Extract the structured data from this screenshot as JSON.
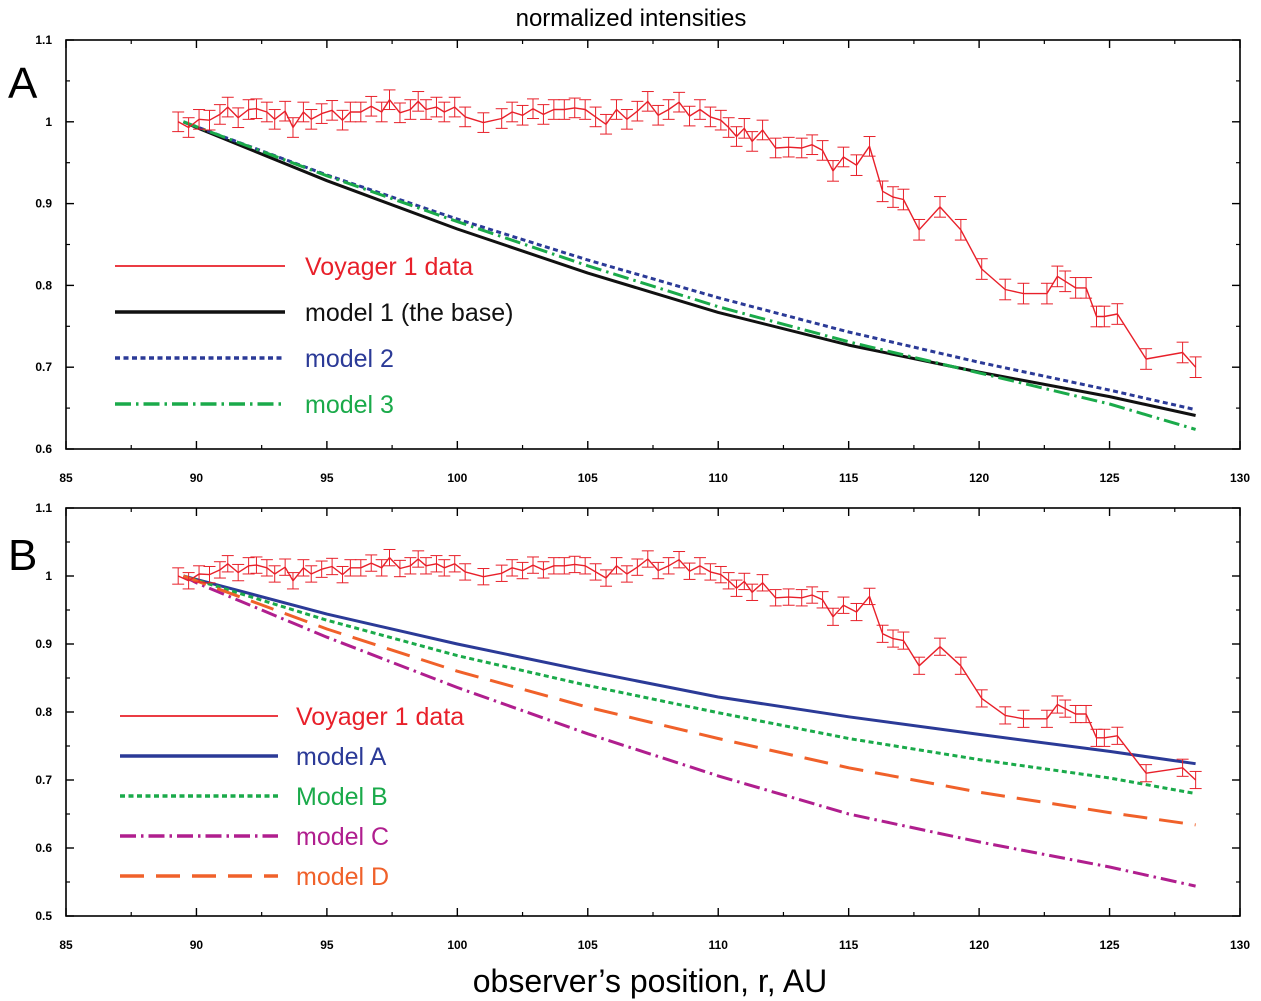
{
  "figure": {
    "title": "normalized intensities",
    "xlabel": "observer’s position, r, AU"
  },
  "colors": {
    "voyager": "#e8202a",
    "model_1": "#111111",
    "model_2": "#2b3a97",
    "model_3": "#1aaa4a",
    "model_A": "#2b3a97",
    "model_B": "#1aaa4a",
    "model_C": "#b01e8e",
    "model_D": "#f0612a"
  },
  "chart_data": [
    {
      "type": "line",
      "panel_label": "A",
      "xlim": [
        85,
        130
      ],
      "ylim": [
        0.6,
        1.1
      ],
      "x_ticks": [
        85,
        90,
        95,
        100,
        105,
        110,
        115,
        120,
        125,
        130
      ],
      "y_ticks": [
        "0.6",
        "0.7",
        "0.8",
        "0.9",
        "1",
        "1.1"
      ],
      "grid": false,
      "legend_position": "left",
      "series": [
        {
          "name": "Voyager 1 data",
          "color": "#e8202a",
          "style": "solid-errorbars",
          "x": [
            89.3,
            89.7,
            90.1,
            90.5,
            90.9,
            91.2,
            91.6,
            92.0,
            92.3,
            92.7,
            93.0,
            93.4,
            93.7,
            94.1,
            94.4,
            94.8,
            95.2,
            95.6,
            95.9,
            96.3,
            96.7,
            97.1,
            97.4,
            97.8,
            98.2,
            98.5,
            98.8,
            99.2,
            99.5,
            99.9,
            100.3,
            101.0,
            101.7,
            102.1,
            102.5,
            102.9,
            103.3,
            103.7,
            104.1,
            104.5,
            104.9,
            105.3,
            105.7,
            106.1,
            106.5,
            106.9,
            107.3,
            107.7,
            108.1,
            108.5,
            108.9,
            109.3,
            109.7,
            110.1,
            110.4,
            110.7,
            111.0,
            111.3,
            111.7,
            112.2,
            112.7,
            113.2,
            113.6,
            114.0,
            114.4,
            114.8,
            115.3,
            115.8,
            116.3,
            116.7,
            117.1,
            117.7,
            118.5,
            119.3,
            120.1,
            121.0,
            121.7,
            122.6,
            123.0,
            123.3,
            123.7,
            124.1,
            124.5,
            124.8,
            125.3,
            126.4,
            127.8,
            128.3
          ],
          "y": [
            1.0,
            0.993,
            1.003,
            1.002,
            1.009,
            1.018,
            1.005,
            1.015,
            1.016,
            1.012,
            1.003,
            1.013,
            0.993,
            1.012,
            1.003,
            1.01,
            1.014,
            1.002,
            1.012,
            1.012,
            1.019,
            1.012,
            1.027,
            1.011,
            1.015,
            1.025,
            1.015,
            1.018,
            1.012,
            1.018,
            1.006,
            0.999,
            1.004,
            1.012,
            1.008,
            1.016,
            1.009,
            1.015,
            1.015,
            1.017,
            1.015,
            1.006,
            0.997,
            1.015,
            1.003,
            1.013,
            1.025,
            1.008,
            1.015,
            1.024,
            1.007,
            1.015,
            1.006,
            1.002,
            0.993,
            0.982,
            0.992,
            0.976,
            0.99,
            0.968,
            0.969,
            0.968,
            0.972,
            0.965,
            0.94,
            0.957,
            0.947,
            0.97,
            0.915,
            0.908,
            0.905,
            0.868,
            0.896,
            0.868,
            0.82,
            0.795,
            0.79,
            0.79,
            0.811,
            0.805,
            0.797,
            0.797,
            0.762,
            0.762,
            0.765,
            0.71,
            0.718,
            0.7
          ]
        },
        {
          "name": "model 1 (the base)",
          "color": "#111111",
          "style": "solid",
          "x": [
            89.5,
            90,
            95,
            100,
            105,
            110,
            115,
            120,
            125,
            128.3
          ],
          "y": [
            1.0,
            0.993,
            0.928,
            0.869,
            0.815,
            0.767,
            0.727,
            0.694,
            0.664,
            0.641
          ]
        },
        {
          "name": "model 2",
          "color": "#2b3a97",
          "style": "dotted",
          "x": [
            89.5,
            90,
            95,
            100,
            105,
            110,
            115,
            120,
            125,
            128.3
          ],
          "y": [
            1.0,
            0.994,
            0.935,
            0.881,
            0.831,
            0.785,
            0.743,
            0.706,
            0.672,
            0.648
          ]
        },
        {
          "name": "model 3",
          "color": "#1aaa4a",
          "style": "dash-dot",
          "x": [
            89.5,
            90,
            95,
            100,
            105,
            110,
            115,
            120,
            125,
            128.3
          ],
          "y": [
            1.0,
            0.994,
            0.934,
            0.878,
            0.824,
            0.774,
            0.731,
            0.693,
            0.655,
            0.624
          ]
        }
      ]
    },
    {
      "type": "line",
      "panel_label": "B",
      "xlim": [
        85,
        130
      ],
      "ylim": [
        0.5,
        1.1
      ],
      "x_ticks": [
        85,
        90,
        95,
        100,
        105,
        110,
        115,
        120,
        125,
        130
      ],
      "y_ticks": [
        "0.5",
        "0.6",
        "0.7",
        "0.8",
        "0.9",
        "1",
        "1.1"
      ],
      "grid": false,
      "legend_position": "left",
      "series": [
        {
          "name": "Voyager 1 data",
          "color": "#e8202a",
          "style": "solid-errorbars",
          "x": [
            89.3,
            89.7,
            90.1,
            90.5,
            90.9,
            91.2,
            91.6,
            92.0,
            92.3,
            92.7,
            93.0,
            93.4,
            93.7,
            94.1,
            94.4,
            94.8,
            95.2,
            95.6,
            95.9,
            96.3,
            96.7,
            97.1,
            97.4,
            97.8,
            98.2,
            98.5,
            98.8,
            99.2,
            99.5,
            99.9,
            100.3,
            101.0,
            101.7,
            102.1,
            102.5,
            102.9,
            103.3,
            103.7,
            104.1,
            104.5,
            104.9,
            105.3,
            105.7,
            106.1,
            106.5,
            106.9,
            107.3,
            107.7,
            108.1,
            108.5,
            108.9,
            109.3,
            109.7,
            110.1,
            110.4,
            110.7,
            111.0,
            111.3,
            111.7,
            112.2,
            112.7,
            113.2,
            113.6,
            114.0,
            114.4,
            114.8,
            115.3,
            115.8,
            116.3,
            116.7,
            117.1,
            117.7,
            118.5,
            119.3,
            120.1,
            121.0,
            121.7,
            122.6,
            123.0,
            123.3,
            123.7,
            124.1,
            124.5,
            124.8,
            125.3,
            126.4,
            127.8,
            128.3
          ],
          "y": [
            1.0,
            0.993,
            1.003,
            1.002,
            1.009,
            1.018,
            1.005,
            1.015,
            1.016,
            1.012,
            1.003,
            1.013,
            0.993,
            1.012,
            1.003,
            1.01,
            1.014,
            1.002,
            1.012,
            1.012,
            1.019,
            1.012,
            1.027,
            1.011,
            1.015,
            1.025,
            1.015,
            1.018,
            1.012,
            1.018,
            1.006,
            0.999,
            1.004,
            1.012,
            1.008,
            1.016,
            1.009,
            1.015,
            1.015,
            1.017,
            1.015,
            1.006,
            0.997,
            1.015,
            1.003,
            1.013,
            1.025,
            1.008,
            1.015,
            1.024,
            1.007,
            1.015,
            1.006,
            1.002,
            0.993,
            0.982,
            0.992,
            0.976,
            0.99,
            0.968,
            0.969,
            0.968,
            0.972,
            0.965,
            0.94,
            0.957,
            0.947,
            0.97,
            0.915,
            0.908,
            0.905,
            0.868,
            0.896,
            0.868,
            0.82,
            0.795,
            0.79,
            0.79,
            0.811,
            0.805,
            0.797,
            0.797,
            0.762,
            0.762,
            0.765,
            0.71,
            0.718,
            0.7
          ]
        },
        {
          "name": "model A",
          "color": "#2b3a97",
          "style": "solid",
          "x": [
            89.5,
            90,
            95,
            100,
            105,
            110,
            115,
            120,
            125,
            128.3
          ],
          "y": [
            1.0,
            0.995,
            0.944,
            0.9,
            0.86,
            0.822,
            0.793,
            0.767,
            0.742,
            0.724
          ]
        },
        {
          "name": "Model B",
          "color": "#1aaa4a",
          "style": "dotted",
          "x": [
            89.5,
            90,
            95,
            100,
            105,
            110,
            115,
            120,
            125,
            128.3
          ],
          "y": [
            1.0,
            0.994,
            0.935,
            0.883,
            0.839,
            0.799,
            0.761,
            0.73,
            0.703,
            0.68
          ]
        },
        {
          "name": "model C",
          "color": "#b01e8e",
          "style": "dash-dot",
          "x": [
            89.5,
            90,
            95,
            100,
            105,
            110,
            115,
            120,
            125,
            128.3
          ],
          "y": [
            1.0,
            0.99,
            0.91,
            0.836,
            0.768,
            0.706,
            0.65,
            0.609,
            0.572,
            0.544
          ]
        },
        {
          "name": "model D",
          "color": "#f0612a",
          "style": "long-dash",
          "x": [
            89.5,
            90,
            95,
            100,
            105,
            110,
            115,
            120,
            125,
            128.3
          ],
          "y": [
            1.0,
            0.993,
            0.922,
            0.86,
            0.807,
            0.761,
            0.718,
            0.682,
            0.652,
            0.634
          ]
        }
      ]
    }
  ]
}
